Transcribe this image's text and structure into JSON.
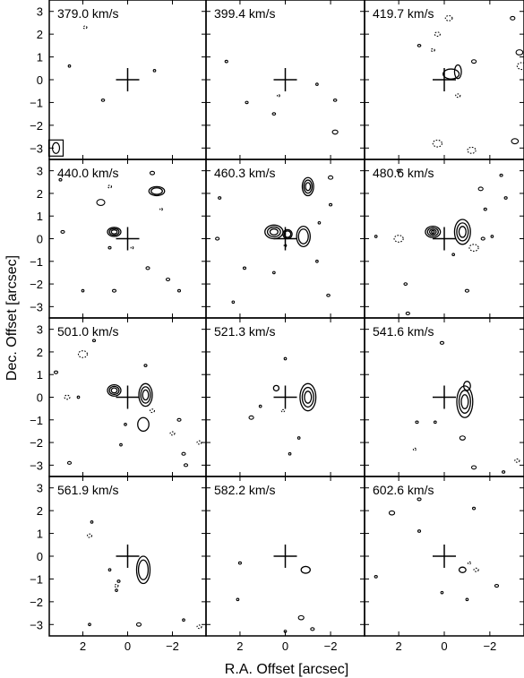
{
  "chart_data": {
    "type": "contour",
    "xlabel": "R.A. Offset [arcsec]",
    "ylabel": "Dec. Offset [arcsec]",
    "x_tick_values": [
      2,
      0,
      -2
    ],
    "x_tick_labels": [
      "2",
      "0",
      "−2"
    ],
    "y_tick_values": [
      3,
      2,
      1,
      0,
      -1,
      -2,
      -3
    ],
    "y_tick_labels": [
      "3",
      "2",
      "1",
      "0",
      "−1",
      "−2",
      "−3"
    ],
    "xlim": [
      3.5,
      -3.5
    ],
    "ylim": [
      -3.5,
      3.5
    ],
    "grid": false,
    "marker": {
      "x": 0,
      "y": 0,
      "shape": "cross"
    },
    "beam": {
      "x": 3.2,
      "y": -3.0
    },
    "panels": [
      {
        "label": "379.0 km/s",
        "emission": [],
        "speckles": [
          [
            1.9,
            2.3,
            0.08,
            true
          ],
          [
            1.1,
            -0.9,
            0.07,
            false
          ],
          [
            -1.2,
            0.4,
            0.05,
            false
          ],
          [
            2.6,
            0.6,
            0.04,
            false
          ]
        ]
      },
      {
        "label": "399.4 km/s",
        "emission": [],
        "speckles": [
          [
            -2.2,
            -2.3,
            0.12,
            false
          ],
          [
            -1.4,
            -0.2,
            0.05,
            false
          ],
          [
            0.5,
            -1.5,
            0.07,
            false
          ],
          [
            1.7,
            -1.0,
            0.06,
            false
          ],
          [
            -2.2,
            -0.9,
            0.07,
            false
          ],
          [
            2.6,
            0.8,
            0.06,
            false
          ],
          [
            0.3,
            -0.7,
            0.05,
            true
          ]
        ]
      },
      {
        "label": "419.7 km/s",
        "emission": [
          {
            "x": -0.3,
            "y": 0.25,
            "rx": 0.35,
            "ry": 0.22,
            "levels": 1
          },
          {
            "x": -0.6,
            "y": 0.35,
            "rx": 0.15,
            "ry": 0.3,
            "levels": 1
          }
        ],
        "speckles": [
          [
            -0.2,
            2.7,
            0.15,
            true
          ],
          [
            0.3,
            2.0,
            0.12,
            true
          ],
          [
            0.5,
            1.3,
            0.08,
            true
          ],
          [
            -0.6,
            -0.7,
            0.1,
            true
          ],
          [
            -3.3,
            1.2,
            0.15,
            false
          ],
          [
            -3.4,
            0.6,
            0.2,
            true
          ],
          [
            0.3,
            -2.8,
            0.2,
            true
          ],
          [
            -1.2,
            -3.1,
            0.18,
            true
          ],
          [
            -3.1,
            -2.7,
            0.15,
            false
          ],
          [
            1.1,
            1.5,
            0.07,
            false
          ],
          [
            -3.0,
            2.7,
            0.1,
            false
          ],
          [
            -1.3,
            0.8,
            0.1,
            false
          ]
        ]
      },
      {
        "label": "440.0 km/s",
        "emission": [
          {
            "x": 0.6,
            "y": 0.3,
            "rx": 0.3,
            "ry": 0.2,
            "levels": 3
          },
          {
            "x": -1.3,
            "y": 2.1,
            "rx": 0.35,
            "ry": 0.2,
            "levels": 2
          }
        ],
        "speckles": [
          [
            1.2,
            1.6,
            0.18,
            false
          ],
          [
            0.8,
            2.3,
            0.08,
            true
          ],
          [
            -1.1,
            2.9,
            0.1,
            false
          ],
          [
            -2.3,
            -2.3,
            0.06,
            false
          ],
          [
            -1.8,
            -1.8,
            0.08,
            false
          ],
          [
            0.6,
            -2.3,
            0.08,
            false
          ],
          [
            2.0,
            -2.3,
            0.05,
            false
          ],
          [
            2.9,
            0.3,
            0.08,
            false
          ],
          [
            -0.9,
            -1.3,
            0.08,
            false
          ],
          [
            -0.2,
            -0.4,
            0.05,
            true
          ],
          [
            -1.5,
            1.3,
            0.05,
            true
          ],
          [
            3.0,
            2.6,
            0.06,
            false
          ],
          [
            0.8,
            -0.4,
            0.06,
            false
          ]
        ]
      },
      {
        "label": "460.3 km/s",
        "emission": [
          {
            "x": 0.5,
            "y": 0.3,
            "rx": 0.4,
            "ry": 0.3,
            "levels": 3
          },
          {
            "x": -0.1,
            "y": 0.2,
            "rx": 0.2,
            "ry": 0.2,
            "levels": 2
          },
          {
            "x": -1.0,
            "y": 2.3,
            "rx": 0.25,
            "ry": 0.4,
            "levels": 3
          },
          {
            "x": -0.8,
            "y": 0.1,
            "rx": 0.3,
            "ry": 0.45,
            "levels": 2
          }
        ],
        "speckles": [
          [
            -2.0,
            2.7,
            0.1,
            false
          ],
          [
            -1.9,
            -2.5,
            0.07,
            false
          ],
          [
            3.0,
            0.0,
            0.08,
            false
          ],
          [
            1.8,
            -1.3,
            0.06,
            false
          ],
          [
            0.5,
            -1.5,
            0.05,
            false
          ],
          [
            -1.5,
            0.7,
            0.05,
            false
          ],
          [
            2.3,
            -2.8,
            0.05,
            false
          ],
          [
            0.0,
            -0.3,
            0.05,
            true
          ],
          [
            -1.4,
            -1.0,
            0.05,
            false
          ],
          [
            -2.0,
            1.5,
            0.06,
            false
          ],
          [
            2.9,
            1.8,
            0.06,
            false
          ]
        ]
      },
      {
        "label": "480.6 km/s",
        "emission": [
          {
            "x": 0.5,
            "y": 0.3,
            "rx": 0.33,
            "ry": 0.25,
            "levels": 4
          },
          {
            "x": -0.8,
            "y": 0.3,
            "rx": 0.35,
            "ry": 0.55,
            "levels": 3
          }
        ],
        "speckles": [
          [
            2.0,
            0.0,
            0.2,
            true
          ],
          [
            -1.3,
            -0.4,
            0.2,
            true
          ],
          [
            -1.7,
            0.0,
            0.08,
            false
          ],
          [
            -2.1,
            0.1,
            0.05,
            false
          ],
          [
            -1.6,
            2.2,
            0.1,
            false
          ],
          [
            -1.8,
            1.3,
            0.06,
            false
          ],
          [
            -1.0,
            -2.3,
            0.08,
            false
          ],
          [
            2.0,
            3.0,
            0.08,
            false
          ],
          [
            1.7,
            -2.0,
            0.07,
            false
          ],
          [
            -2.5,
            2.8,
            0.06,
            false
          ],
          [
            -2.7,
            1.8,
            0.06,
            false
          ],
          [
            3.0,
            0.1,
            0.05,
            false
          ],
          [
            -0.4,
            -0.7,
            0.05,
            false
          ],
          [
            1.6,
            -3.3,
            0.08,
            false
          ]
        ]
      },
      {
        "label": "501.0 km/s",
        "emission": [
          {
            "x": 0.6,
            "y": 0.3,
            "rx": 0.3,
            "ry": 0.25,
            "levels": 3
          },
          {
            "x": -0.8,
            "y": 0.1,
            "rx": 0.3,
            "ry": 0.5,
            "levels": 3
          },
          {
            "x": -0.7,
            "y": -1.2,
            "rx": 0.25,
            "ry": 0.3,
            "levels": 1
          }
        ],
        "speckles": [
          [
            2.0,
            1.9,
            0.2,
            true
          ],
          [
            2.7,
            0.0,
            0.12,
            true
          ],
          [
            3.2,
            1.1,
            0.08,
            false
          ],
          [
            1.5,
            2.5,
            0.06,
            false
          ],
          [
            -2.0,
            -1.6,
            0.1,
            true
          ],
          [
            -2.3,
            -1.0,
            0.08,
            false
          ],
          [
            -1.1,
            -0.6,
            0.1,
            true
          ],
          [
            -2.5,
            -2.5,
            0.08,
            false
          ],
          [
            -2.6,
            -3.0,
            0.08,
            false
          ],
          [
            -3.2,
            -2.0,
            0.1,
            true
          ],
          [
            2.6,
            -2.9,
            0.08,
            false
          ],
          [
            -0.8,
            1.4,
            0.06,
            false
          ],
          [
            2.2,
            0.0,
            0.05,
            false
          ],
          [
            0.1,
            -1.2,
            0.05,
            false
          ],
          [
            0.3,
            -2.1,
            0.05,
            false
          ]
        ]
      },
      {
        "label": "521.3 km/s",
        "emission": [
          {
            "x": -1.0,
            "y": 0.0,
            "rx": 0.35,
            "ry": 0.6,
            "levels": 3
          },
          {
            "x": 0.4,
            "y": 0.4,
            "rx": 0.12,
            "ry": 0.12,
            "levels": 1
          }
        ],
        "speckles": [
          [
            1.5,
            -0.9,
            0.1,
            false
          ],
          [
            0.1,
            -0.6,
            0.07,
            true
          ],
          [
            0.0,
            1.7,
            0.05,
            false
          ],
          [
            -0.6,
            -1.8,
            0.05,
            false
          ],
          [
            1.1,
            -0.4,
            0.05,
            false
          ],
          [
            -0.2,
            -2.5,
            0.05,
            false
          ]
        ]
      },
      {
        "label": "541.6 km/s",
        "emission": [
          {
            "x": -0.9,
            "y": -0.2,
            "rx": 0.35,
            "ry": 0.7,
            "levels": 3
          },
          {
            "x": -1.0,
            "y": 0.5,
            "rx": 0.15,
            "ry": 0.2,
            "levels": 1
          }
        ],
        "speckles": [
          [
            0.1,
            2.4,
            0.08,
            false
          ],
          [
            1.2,
            -1.1,
            0.06,
            false
          ],
          [
            -0.8,
            -1.8,
            0.12,
            false
          ],
          [
            0.4,
            -1.1,
            0.05,
            false
          ],
          [
            -1.3,
            -3.1,
            0.1,
            false
          ],
          [
            -3.2,
            -2.8,
            0.1,
            true
          ],
          [
            1.3,
            -2.3,
            0.06,
            true
          ],
          [
            -2.6,
            -3.3,
            0.06,
            false
          ]
        ]
      },
      {
        "label": "561.9 km/s",
        "emission": [
          {
            "x": -0.7,
            "y": -0.6,
            "rx": 0.3,
            "ry": 0.6,
            "levels": 2
          }
        ],
        "speckles": [
          [
            1.7,
            0.9,
            0.1,
            true
          ],
          [
            0.5,
            -1.3,
            0.08,
            true
          ],
          [
            0.4,
            -1.1,
            0.06,
            false
          ],
          [
            0.5,
            -1.5,
            0.05,
            false
          ],
          [
            -0.5,
            -3.0,
            0.1,
            false
          ],
          [
            1.7,
            -3.0,
            0.05,
            false
          ],
          [
            -2.5,
            -2.8,
            0.05,
            false
          ],
          [
            1.6,
            1.5,
            0.05,
            false
          ],
          [
            -3.2,
            -3.1,
            0.1,
            true
          ],
          [
            0.8,
            -0.6,
            0.04,
            false
          ]
        ]
      },
      {
        "label": "582.2 km/s",
        "emission": [
          {
            "x": -0.9,
            "y": -0.6,
            "rx": 0.2,
            "ry": 0.15,
            "levels": 1
          }
        ],
        "speckles": [
          [
            2.0,
            -0.3,
            0.06,
            false
          ],
          [
            2.1,
            -1.9,
            0.05,
            false
          ],
          [
            -0.7,
            -2.7,
            0.12,
            false
          ],
          [
            -1.2,
            -3.2,
            0.08,
            false
          ],
          [
            0.0,
            -3.3,
            0.05,
            false
          ]
        ]
      },
      {
        "label": "602.6 km/s",
        "emission": [
          {
            "x": -0.8,
            "y": -0.6,
            "rx": 0.15,
            "ry": 0.12,
            "levels": 1
          }
        ],
        "speckles": [
          [
            2.3,
            1.9,
            0.12,
            false
          ],
          [
            1.1,
            2.5,
            0.08,
            false
          ],
          [
            -1.3,
            2.1,
            0.06,
            false
          ],
          [
            -1.4,
            -0.6,
            0.1,
            true
          ],
          [
            -1.1,
            -0.3,
            0.06,
            true
          ],
          [
            1.1,
            1.1,
            0.06,
            false
          ],
          [
            0.1,
            -1.6,
            0.05,
            false
          ],
          [
            -1.0,
            -1.9,
            0.05,
            false
          ],
          [
            -2.3,
            -1.3,
            0.08,
            false
          ],
          [
            3.0,
            -0.9,
            0.06,
            false
          ]
        ]
      }
    ]
  }
}
